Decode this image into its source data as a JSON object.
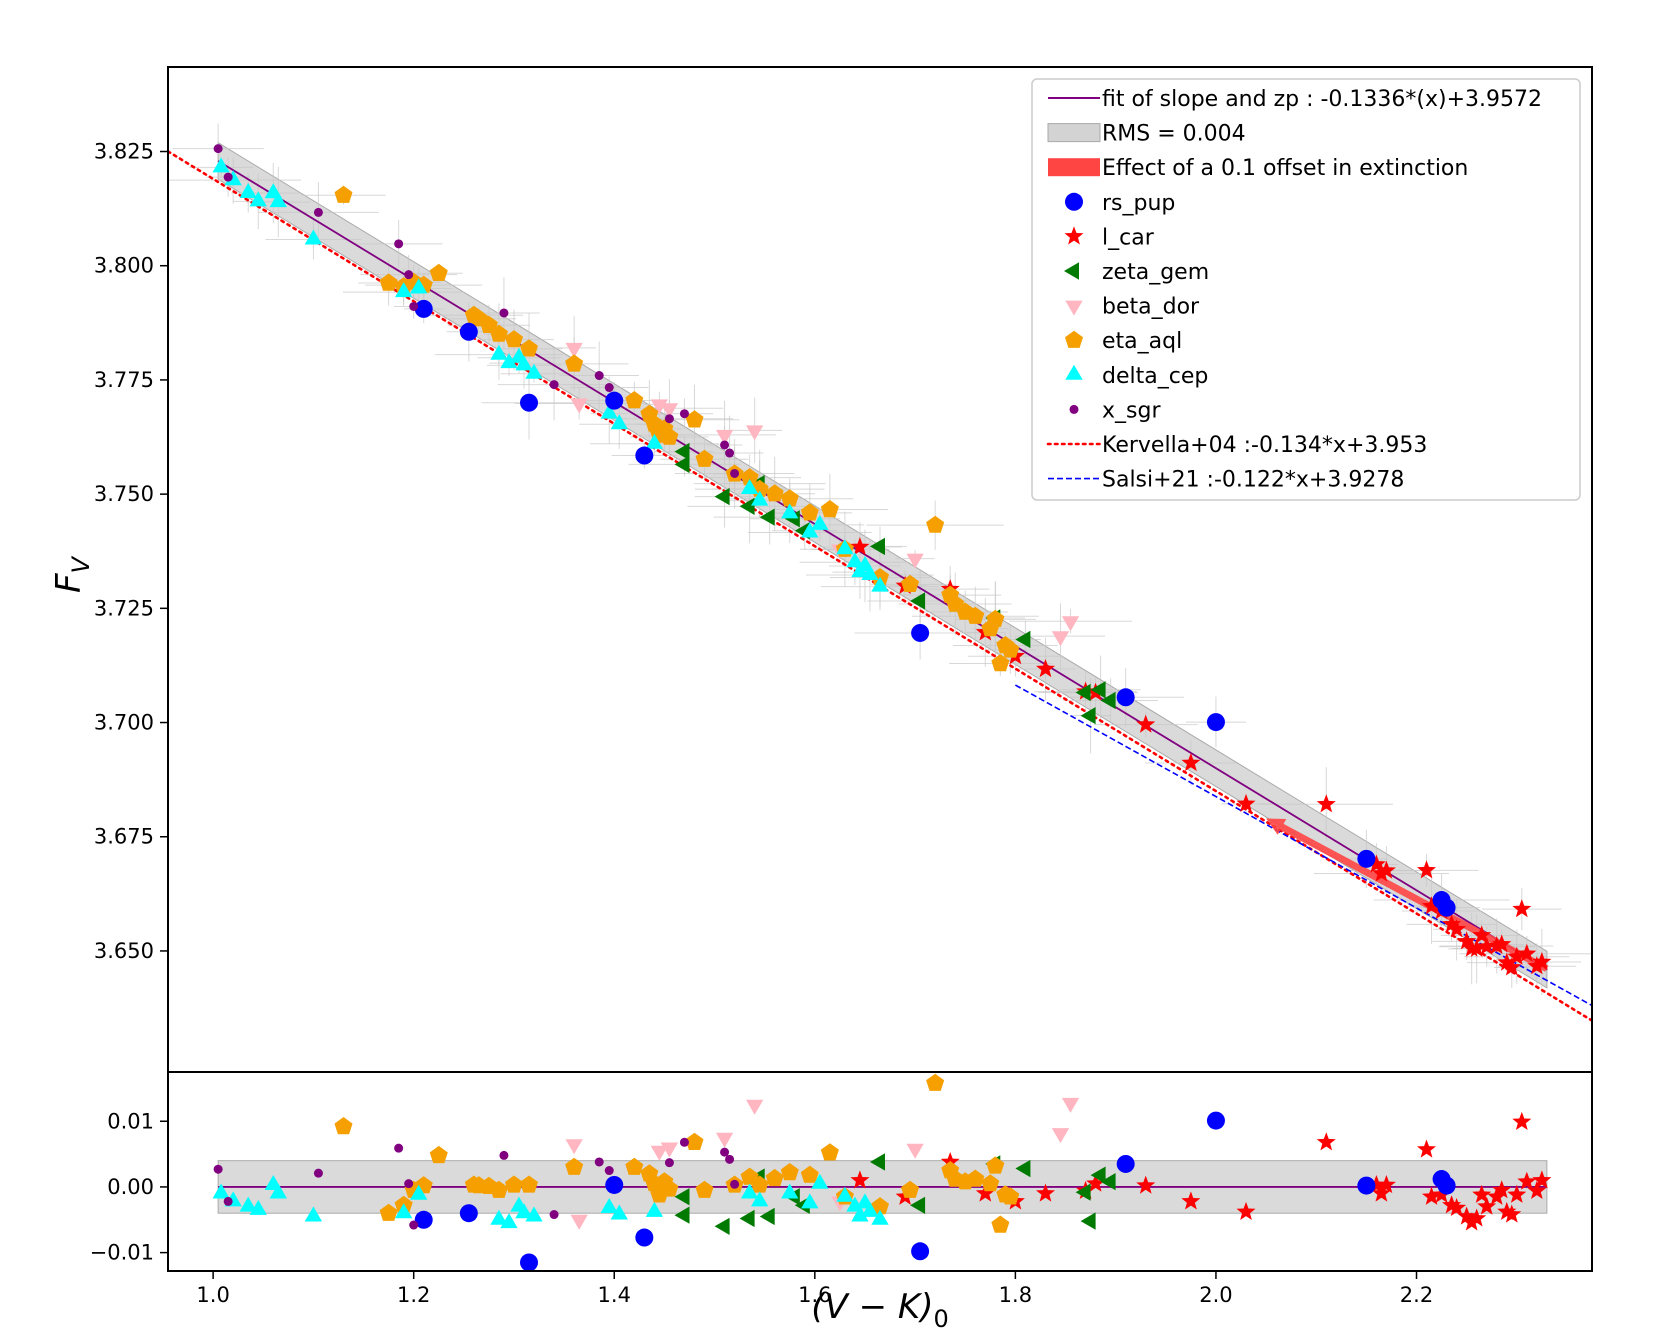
{
  "chart_data": {
    "type": "scatter",
    "xlabel": "(V − K)0",
    "ylabel": "FV",
    "xlim": [
      0.955,
      2.375
    ],
    "main": {
      "ylim": [
        3.6235,
        3.8435
      ],
      "yticks": [
        "3.650",
        "3.675",
        "3.700",
        "3.725",
        "3.750",
        "3.775",
        "3.800",
        "3.825"
      ],
      "ytick_values": [
        3.65,
        3.675,
        3.7,
        3.725,
        3.75,
        3.775,
        3.8,
        3.825
      ]
    },
    "residual": {
      "ylim": [
        -0.0128,
        0.0175
      ],
      "yticks": [
        "−0.01",
        "0.00",
        "0.01"
      ],
      "ytick_values": [
        -0.01,
        0.0,
        0.01
      ]
    },
    "xticks": [
      "1.0",
      "1.2",
      "1.4",
      "1.6",
      "1.8",
      "2.0",
      "2.2"
    ],
    "xtick_values": [
      1.0,
      1.2,
      1.4,
      1.6,
      1.8,
      2.0,
      2.2
    ],
    "fit": {
      "slope": -0.1336,
      "intercept": 3.9572,
      "x_range": [
        1.005,
        2.33
      ],
      "rms": 0.004,
      "color": "#800080"
    },
    "kervella": {
      "slope": -0.134,
      "intercept": 3.953,
      "x_range": [
        0.955,
        2.375
      ],
      "color": "#ff0000"
    },
    "salsi": {
      "slope": -0.122,
      "intercept": 3.9278,
      "x_range": [
        1.8,
        2.375
      ],
      "color": "#0000ff"
    },
    "extinction_offset": {
      "x_from": 2.33,
      "y_from": 3.6461,
      "x_to": 2.05,
      "y_to": 3.679,
      "color": "#ff4444"
    },
    "legend": [
      {
        "label": "fit of slope and zp : -0.1336*(x)+3.9572",
        "kind": "line",
        "color": "#800080"
      },
      {
        "label": "RMS = 0.004",
        "kind": "band",
        "color": "#d3d3d3"
      },
      {
        "label": "Effect of a 0.1 offset in extinction",
        "kind": "patch",
        "color": "#ff4444"
      },
      {
        "label": "rs_pup",
        "kind": "circle",
        "color": "#0000ff"
      },
      {
        "label": "l_car",
        "kind": "star",
        "color": "#ff0000"
      },
      {
        "label": "zeta_gem",
        "kind": "triangle-left",
        "color": "#007a00"
      },
      {
        "label": "beta_dor",
        "kind": "triangle-down",
        "color": "#ffb6c1"
      },
      {
        "label": "eta_aql",
        "kind": "pentagon",
        "color": "#f5a000"
      },
      {
        "label": "delta_cep",
        "kind": "triangle-up",
        "color": "#00ffff"
      },
      {
        "label": "x_sgr",
        "kind": "dot",
        "color": "#800080"
      },
      {
        "label": "Kervella+04 :-0.134*x+3.953",
        "kind": "dotted",
        "color": "#ff0000"
      },
      {
        "label": "Salsi+21 :-0.122*x+3.9278",
        "kind": "dashed",
        "color": "#0000ff"
      }
    ],
    "series": [
      {
        "name": "rs_pup",
        "marker": "circle",
        "color": "#0000ff",
        "x": [
          1.21,
          1.255,
          1.315,
          1.4,
          1.43,
          1.705,
          1.91,
          2.0,
          2.15,
          2.225,
          2.23
        ],
        "resid": [
          -0.005,
          -0.004,
          -0.0115,
          0.0003,
          -0.0077,
          -0.0098,
          0.0035,
          0.0101,
          0.0002,
          0.0012,
          0.0002
        ]
      },
      {
        "name": "l_car",
        "marker": "star",
        "color": "#ff0000",
        "x": [
          1.645,
          1.69,
          1.735,
          1.77,
          1.8,
          1.83,
          1.87,
          1.88,
          1.93,
          1.975,
          2.03,
          2.11,
          2.16,
          2.165,
          2.17,
          2.21,
          2.215,
          2.225,
          2.235,
          2.24,
          2.25,
          2.255,
          2.26,
          2.265,
          2.27,
          2.28,
          2.285,
          2.29,
          2.295,
          2.3,
          2.31,
          2.32,
          2.325,
          2.305
        ],
        "resid": [
          0.001,
          -0.0015,
          0.0038,
          -0.001,
          -0.0022,
          -0.001,
          -0.0006,
          0.0005,
          0.0002,
          -0.0022,
          -0.0038,
          0.0068,
          0.0003,
          -0.001,
          0.0003,
          0.0057,
          -0.0015,
          -0.0012,
          -0.0028,
          -0.0032,
          -0.0045,
          -0.0054,
          -0.0048,
          -0.0012,
          -0.003,
          -0.0015,
          -0.0005,
          -0.0038,
          -0.0042,
          -0.0012,
          0.0008,
          -0.0006,
          0.001,
          0.0099
        ]
      },
      {
        "name": "zeta_gem",
        "marker": "triangle-left",
        "color": "#007a00",
        "x": [
          1.47,
          1.47,
          1.51,
          1.535,
          1.545,
          1.555,
          1.58,
          1.59,
          1.665,
          1.705,
          1.78,
          1.81,
          1.87,
          1.875,
          1.885,
          1.895
        ],
        "resid": [
          -0.0015,
          -0.0043,
          -0.006,
          -0.0048,
          0.0015,
          -0.0045,
          -0.0015,
          -0.0028,
          0.0038,
          -0.0028,
          0.0035,
          0.0028,
          -0.0008,
          -0.0052,
          0.0018,
          0.0008
        ]
      },
      {
        "name": "beta_dor",
        "marker": "triangle-down",
        "color": "#ffb6c1",
        "x": [
          1.36,
          1.365,
          1.445,
          1.455,
          1.51,
          1.54,
          1.625,
          1.7,
          1.845,
          1.855
        ],
        "resid": [
          0.0065,
          -0.005,
          0.0055,
          0.006,
          0.0075,
          0.0125,
          -0.0022,
          0.0058,
          0.0082,
          0.0128
        ]
      },
      {
        "name": "eta_aql",
        "marker": "pentagon",
        "color": "#f5a000",
        "x": [
          1.13,
          1.175,
          1.19,
          1.2,
          1.21,
          1.225,
          1.26,
          1.265,
          1.275,
          1.285,
          1.3,
          1.315,
          1.36,
          1.42,
          1.435,
          1.44,
          1.445,
          1.45,
          1.455,
          1.48,
          1.49,
          1.52,
          1.535,
          1.545,
          1.56,
          1.575,
          1.595,
          1.615,
          1.63,
          1.665,
          1.695,
          1.72,
          1.735,
          1.74,
          1.75,
          1.76,
          1.775,
          1.78,
          1.785,
          1.79,
          1.795
        ],
        "resid": [
          0.0092,
          -0.004,
          -0.0028,
          -0.0005,
          0.0002,
          0.0048,
          0.0003,
          0.0002,
          0.0001,
          -0.0005,
          0.0003,
          0.0003,
          0.003,
          0.003,
          0.002,
          0.0005,
          -0.0012,
          0.0008,
          -0.0003,
          0.0068,
          -0.0005,
          0.0003,
          0.0015,
          0.0003,
          0.0013,
          0.0022,
          0.0018,
          0.0052,
          -0.0015,
          -0.003,
          -0.0005,
          0.0158,
          0.0025,
          0.0012,
          0.0008,
          0.0012,
          0.0005,
          0.0032,
          -0.0058,
          -0.0012,
          -0.0015
        ]
      },
      {
        "name": "delta_cep",
        "marker": "triangle-up",
        "color": "#00ffff",
        "x": [
          1.008,
          1.02,
          1.035,
          1.045,
          1.06,
          1.065,
          1.1,
          1.19,
          1.205,
          1.285,
          1.295,
          1.305,
          1.31,
          1.32,
          1.395,
          1.405,
          1.44,
          1.535,
          1.545,
          1.575,
          1.595,
          1.605,
          1.63,
          1.64,
          1.645,
          1.655,
          1.65,
          1.665
        ],
        "resid": [
          -0.001,
          -0.0022,
          -0.003,
          -0.0035,
          0.0003,
          -0.001,
          -0.0045,
          -0.004,
          -0.0012,
          -0.005,
          -0.0055,
          -0.003,
          -0.004,
          -0.0045,
          -0.0032,
          -0.0042,
          -0.0038,
          -0.001,
          -0.0022,
          -0.001,
          -0.0025,
          0.0005,
          -0.0015,
          -0.003,
          -0.0045,
          -0.0038,
          -0.0025,
          -0.005
        ]
      },
      {
        "name": "x_sgr",
        "marker": "dot",
        "color": "#800080",
        "x": [
          1.005,
          1.015,
          1.105,
          1.185,
          1.195,
          1.2,
          1.29,
          1.34,
          1.385,
          1.395,
          1.455,
          1.47,
          1.51,
          1.515,
          1.52
        ],
        "resid": [
          0.0027,
          -0.0022,
          0.0021,
          0.0059,
          0.0005,
          -0.0058,
          0.0048,
          -0.0042,
          0.0038,
          0.0025,
          0.0037,
          0.0068,
          0.0053,
          0.0042,
          0.0004
        ]
      }
    ]
  }
}
